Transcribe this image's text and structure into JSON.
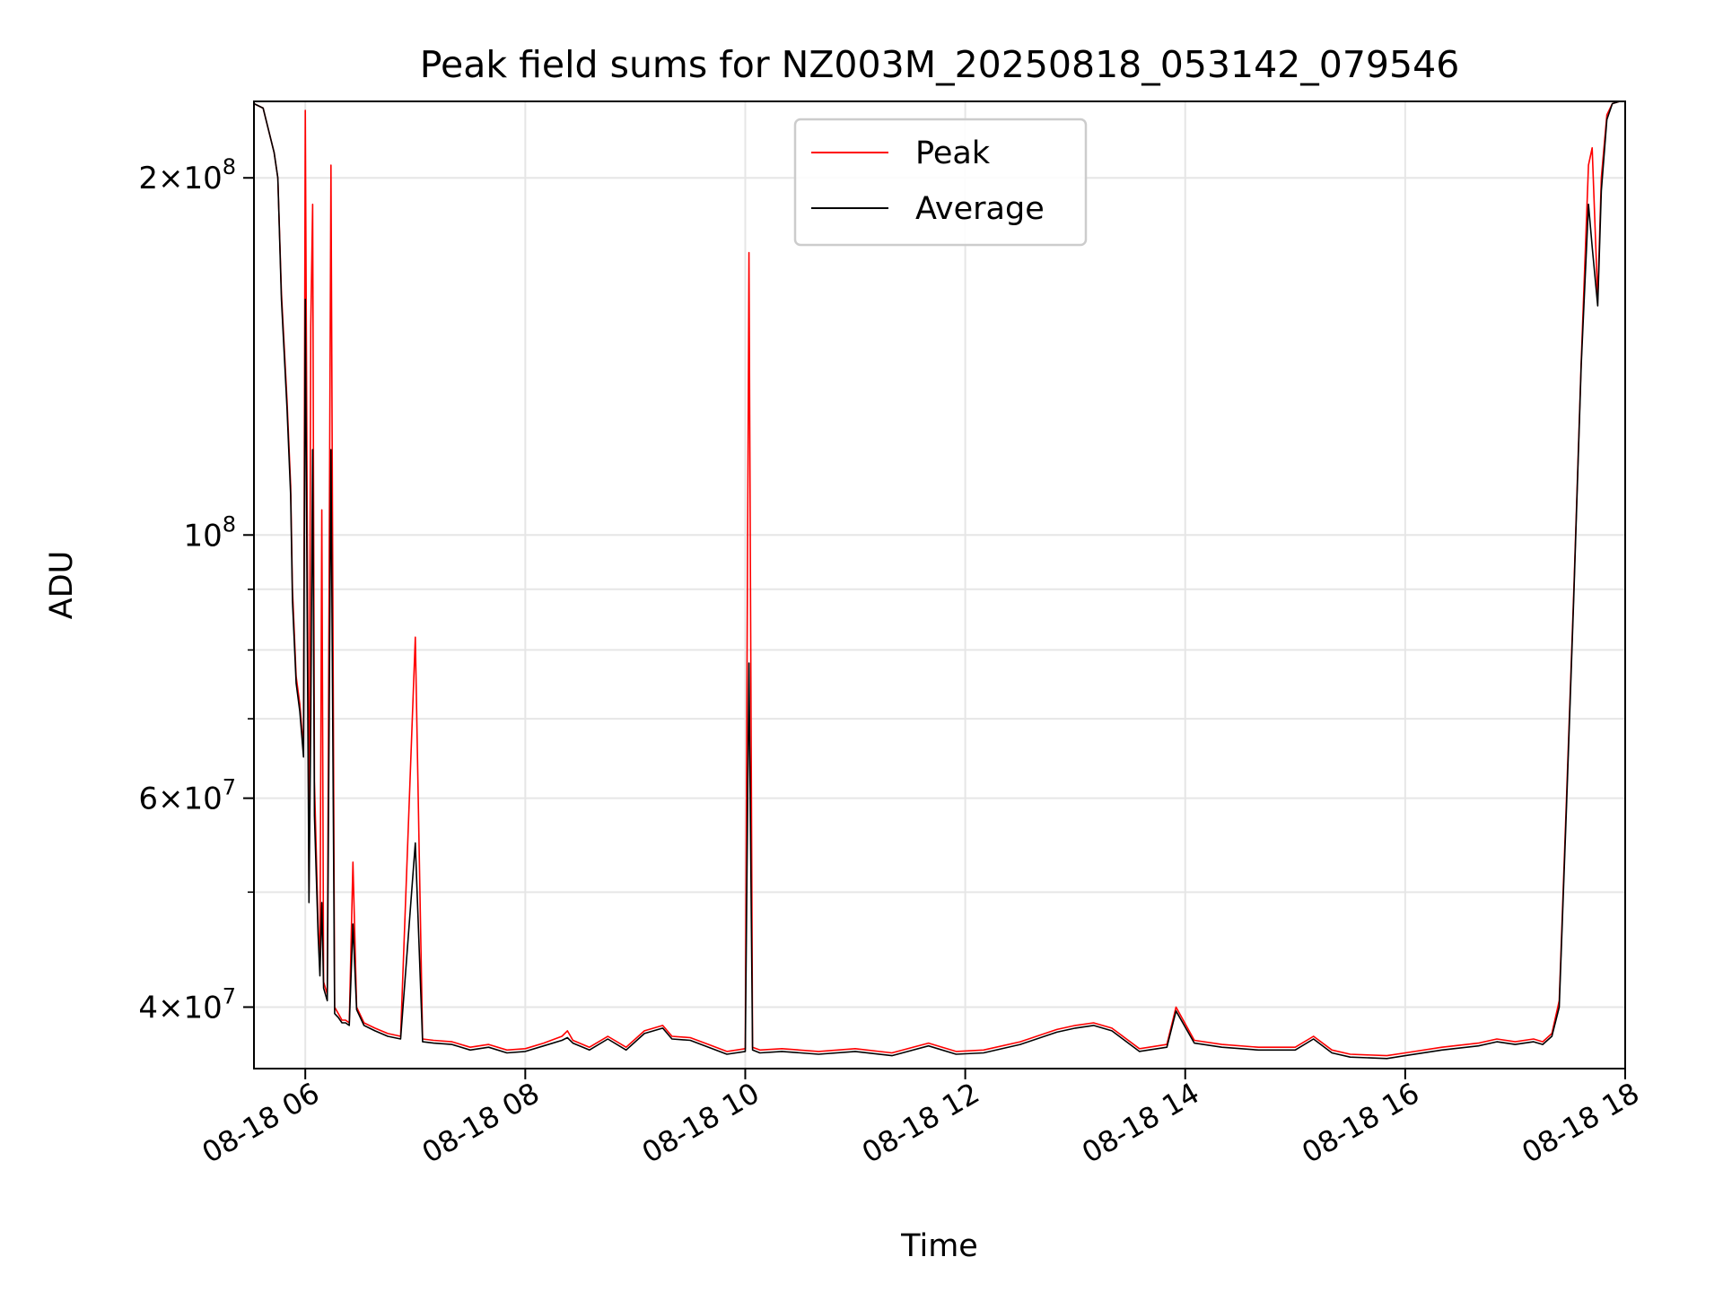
{
  "chart_data": {
    "type": "line",
    "title": "Peak field sums for NZ003M_20250818_053142_079546",
    "xlabel": "Time",
    "ylabel": "ADU",
    "yscale": "log",
    "xlim": [
      "2025-08-18 05:32",
      "2025-08-18 18:00"
    ],
    "ylim": [
      35500000,
      232000000
    ],
    "grid": true,
    "legend": "upper center",
    "x_ticks": [
      {
        "t": "2025-08-18 06:00",
        "label": "08-18 06"
      },
      {
        "t": "2025-08-18 08:00",
        "label": "08-18 08"
      },
      {
        "t": "2025-08-18 10:00",
        "label": "08-18 10"
      },
      {
        "t": "2025-08-18 12:00",
        "label": "08-18 12"
      },
      {
        "t": "2025-08-18 14:00",
        "label": "08-18 14"
      },
      {
        "t": "2025-08-18 16:00",
        "label": "08-18 16"
      },
      {
        "t": "2025-08-18 18:00",
        "label": "08-18 18"
      }
    ],
    "y_ticks": [
      {
        "v": 40000000,
        "mant": "4",
        "exp": "7"
      },
      {
        "v": 60000000,
        "mant": "6",
        "exp": "7"
      },
      {
        "v": 100000000,
        "mant": "",
        "exp": "8"
      },
      {
        "v": 200000000,
        "mant": "2",
        "exp": "8"
      }
    ],
    "y_minor_ticks": [
      50000000,
      70000000,
      80000000,
      90000000
    ],
    "series": [
      {
        "name": "Peak",
        "color": "#ff0000",
        "x": [
          "05:32",
          "05:37",
          "05:43",
          "05:45",
          "05:47",
          "05:50",
          "05:52",
          "05:53",
          "05:55",
          "05:57",
          "05:59",
          "06:00",
          "06:02",
          "06:03",
          "06:04",
          "06:05",
          "06:07",
          "06:08",
          "06:09",
          "06:10",
          "06:12",
          "06:14",
          "06:16",
          "06:18",
          "06:20",
          "06:22",
          "06:24",
          "06:26",
          "06:28",
          "06:32",
          "06:38",
          "06:45",
          "06:52",
          "07:00",
          "07:04",
          "07:10",
          "07:20",
          "07:30",
          "07:40",
          "07:50",
          "08:00",
          "08:10",
          "08:20",
          "08:23",
          "08:26",
          "08:35",
          "08:45",
          "08:55",
          "09:05",
          "09:15",
          "09:20",
          "09:30",
          "09:40",
          "09:50",
          "10:00",
          "10:02",
          "10:04",
          "10:08",
          "10:20",
          "10:40",
          "11:00",
          "11:20",
          "11:40",
          "11:55",
          "12:10",
          "12:30",
          "12:50",
          "13:00",
          "13:10",
          "13:20",
          "13:35",
          "13:50",
          "13:55",
          "14:05",
          "14:20",
          "14:40",
          "15:00",
          "15:10",
          "15:20",
          "15:30",
          "15:50",
          "16:00",
          "16:20",
          "16:40",
          "16:50",
          "17:00",
          "17:10",
          "17:15",
          "17:20",
          "17:24",
          "17:28",
          "17:32",
          "17:36",
          "17:40",
          "17:42",
          "17:45",
          "17:47",
          "17:50",
          "17:53",
          "17:57",
          "18:00"
        ],
        "values": [
          231000000,
          229000000,
          210000000,
          200000000,
          160000000,
          130000000,
          110000000,
          90000000,
          76000000,
          72000000,
          66000000,
          228000000,
          50000000,
          150000000,
          190000000,
          62000000,
          47000000,
          43000000,
          105000000,
          42000000,
          41000000,
          205000000,
          40000000,
          39500000,
          39000000,
          39000000,
          38800000,
          53000000,
          40000000,
          38800000,
          38400000,
          38000000,
          37800000,
          82000000,
          37600000,
          37500000,
          37400000,
          37000000,
          37200000,
          36800000,
          36900000,
          37300000,
          37800000,
          38200000,
          37500000,
          37000000,
          37800000,
          37000000,
          38200000,
          38600000,
          37800000,
          37700000,
          37200000,
          36700000,
          36900000,
          173000000,
          37000000,
          36800000,
          36900000,
          36700000,
          36900000,
          36600000,
          37300000,
          36700000,
          36800000,
          37400000,
          38300000,
          38600000,
          38800000,
          38400000,
          36900000,
          37200000,
          40000000,
          37500000,
          37200000,
          37000000,
          37000000,
          37800000,
          36800000,
          36500000,
          36400000,
          36600000,
          37000000,
          37300000,
          37600000,
          37400000,
          37600000,
          37400000,
          38000000,
          40500000,
          60000000,
          90000000,
          140000000,
          205000000,
          212000000,
          158000000,
          200000000,
          226000000,
          231000000,
          232000000,
          232000000
        ]
      },
      {
        "name": "Average",
        "color": "#000000",
        "x": [
          "05:32",
          "05:37",
          "05:43",
          "05:45",
          "05:47",
          "05:50",
          "05:52",
          "05:53",
          "05:55",
          "05:57",
          "05:59",
          "06:00",
          "06:02",
          "06:03",
          "06:04",
          "06:05",
          "06:07",
          "06:08",
          "06:09",
          "06:10",
          "06:12",
          "06:14",
          "06:16",
          "06:18",
          "06:20",
          "06:22",
          "06:24",
          "06:26",
          "06:28",
          "06:32",
          "06:38",
          "06:45",
          "06:52",
          "07:00",
          "07:04",
          "07:10",
          "07:20",
          "07:30",
          "07:40",
          "07:50",
          "08:00",
          "08:10",
          "08:20",
          "08:23",
          "08:26",
          "08:35",
          "08:45",
          "08:55",
          "09:05",
          "09:15",
          "09:20",
          "09:30",
          "09:40",
          "09:50",
          "10:00",
          "10:02",
          "10:04",
          "10:08",
          "10:20",
          "10:40",
          "11:00",
          "11:20",
          "11:40",
          "11:55",
          "12:10",
          "12:30",
          "12:50",
          "13:00",
          "13:10",
          "13:20",
          "13:35",
          "13:50",
          "13:55",
          "14:05",
          "14:20",
          "14:40",
          "15:00",
          "15:10",
          "15:20",
          "15:30",
          "15:50",
          "16:00",
          "16:20",
          "16:40",
          "16:50",
          "17:00",
          "17:10",
          "17:15",
          "17:20",
          "17:24",
          "17:28",
          "17:32",
          "17:36",
          "17:40",
          "17:42",
          "17:45",
          "17:47",
          "17:50",
          "17:53",
          "17:57",
          "18:00"
        ],
        "values": [
          231000000,
          229000000,
          210000000,
          200000000,
          158000000,
          128000000,
          108000000,
          88000000,
          75000000,
          71000000,
          65000000,
          158000000,
          49000000,
          70000000,
          118000000,
          58000000,
          46000000,
          42500000,
          49000000,
          41500000,
          40500000,
          118000000,
          39500000,
          39200000,
          38800000,
          38800000,
          38600000,
          47000000,
          39800000,
          38600000,
          38200000,
          37800000,
          37600000,
          55000000,
          37400000,
          37300000,
          37200000,
          36800000,
          37000000,
          36600000,
          36700000,
          37100000,
          37500000,
          37700000,
          37300000,
          36800000,
          37600000,
          36800000,
          38000000,
          38400000,
          37600000,
          37500000,
          37000000,
          36500000,
          36700000,
          78000000,
          36800000,
          36600000,
          36700000,
          36500000,
          36700000,
          36400000,
          37100000,
          36500000,
          36600000,
          37200000,
          38100000,
          38400000,
          38600000,
          38200000,
          36700000,
          37000000,
          39700000,
          37300000,
          37000000,
          36800000,
          36800000,
          37600000,
          36600000,
          36300000,
          36200000,
          36400000,
          36800000,
          37100000,
          37400000,
          37200000,
          37400000,
          37200000,
          37800000,
          40000000,
          59000000,
          89000000,
          139000000,
          190000000,
          175000000,
          156000000,
          195000000,
          224000000,
          231000000,
          232000000,
          232000000
        ]
      }
    ]
  }
}
